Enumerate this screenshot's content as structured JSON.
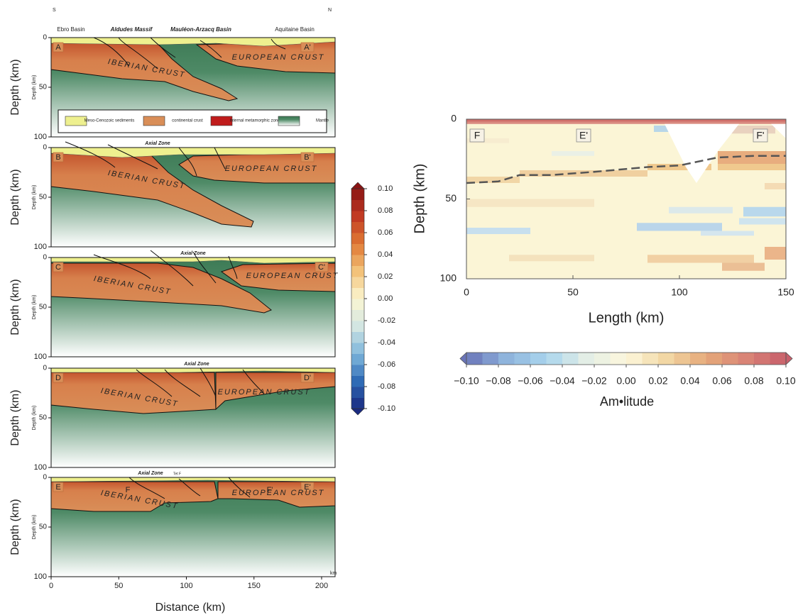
{
  "left_figure": {
    "compass": {
      "left": "S",
      "right": "N"
    },
    "basins": [
      "Ebro Basin",
      "Aldudes Massif",
      "Mauléon-Arzacq Basin",
      "Aquitaine Basin"
    ],
    "legend": [
      "Meso-Cenozoic sediments",
      "continental crust",
      "Internal metamorphic zone",
      "Mantle"
    ],
    "panels": [
      {
        "start": "A",
        "end": "A'",
        "iberian": "IBERIAN CRUST",
        "european": "EUROPEAN CRUST"
      },
      {
        "start": "B",
        "end": "B'",
        "iberian": "IBERIAN CRUST",
        "european": "EUROPEAN CRUST",
        "zone": "Axial Zone"
      },
      {
        "start": "C",
        "end": "C'",
        "iberian": "IBERIAN CRUST",
        "european": "EUROPEAN CRUST",
        "zone": "Axial Zone"
      },
      {
        "start": "D",
        "end": "D'",
        "iberian": "IBERIAN CRUST",
        "european": "EUROPEAN CRUST",
        "zone": "Axial Zone"
      },
      {
        "start": "E",
        "end": "E'",
        "iberian": "IBERIAN CRUST",
        "european": "EUROPEAN CRUST",
        "zone": "Axial Zone",
        "fault": "Tet F",
        "markers": [
          "F",
          "F'"
        ]
      }
    ],
    "y_label": "Depth (km)",
    "inner_y_label": "Depth (km)",
    "yticks": [
      0,
      50,
      100
    ],
    "xticks": [
      0,
      50,
      100,
      150,
      200
    ],
    "x_unit": "km",
    "x_label": "Distance (km)"
  },
  "colorbar": {
    "ticks": [
      {
        "value": 0.1,
        "label": "0.10"
      },
      {
        "value": 0.08,
        "label": "0.08"
      },
      {
        "value": 0.06,
        "label": "0.06"
      },
      {
        "value": 0.04,
        "label": "0.04"
      },
      {
        "value": 0.02,
        "label": "0.02"
      },
      {
        "value": 0,
        "label": "0.00"
      },
      {
        "value": -0.02,
        "label": "-0.02"
      },
      {
        "value": -0.04,
        "label": "-0.04"
      },
      {
        "value": -0.06,
        "label": "-0.06"
      },
      {
        "value": -0.08,
        "label": "-0.08"
      },
      {
        "value": -0.1,
        "label": "-0.10"
      }
    ]
  },
  "section": {
    "markers": [
      {
        "label": "F",
        "x": 5
      },
      {
        "label": "E'",
        "x": 55
      },
      {
        "label": "F'",
        "x": 138
      }
    ],
    "x_label": "Length (km)",
    "y_label": "Depth (km)",
    "xlim": [
      0,
      150
    ],
    "ylim": [
      0,
      100
    ],
    "xticks": [
      0,
      50,
      100,
      150
    ],
    "yticks": [
      0,
      50,
      100
    ],
    "moho": {
      "x": [
        0,
        15,
        25,
        40,
        60,
        85,
        100,
        118,
        135,
        150
      ],
      "depth": [
        40,
        39,
        35,
        35,
        33,
        30,
        29,
        24,
        23,
        23
      ]
    },
    "colorbar": {
      "ticks": [
        {
          "value": -0.1,
          "label": "−0.10"
        },
        {
          "value": -0.08,
          "label": "−0.08"
        },
        {
          "value": -0.06,
          "label": "−0.06"
        },
        {
          "value": -0.04,
          "label": "−0.04"
        },
        {
          "value": -0.02,
          "label": "−0.02"
        },
        {
          "value": 0,
          "label": "0.00"
        },
        {
          "value": 0.02,
          "label": "0.02"
        },
        {
          "value": 0.04,
          "label": "0.04"
        },
        {
          "value": 0.06,
          "label": "0.06"
        },
        {
          "value": 0.08,
          "label": "0.08"
        },
        {
          "value": 0.1,
          "label": "0.10"
        }
      ],
      "label": "Am•litude"
    }
  }
}
